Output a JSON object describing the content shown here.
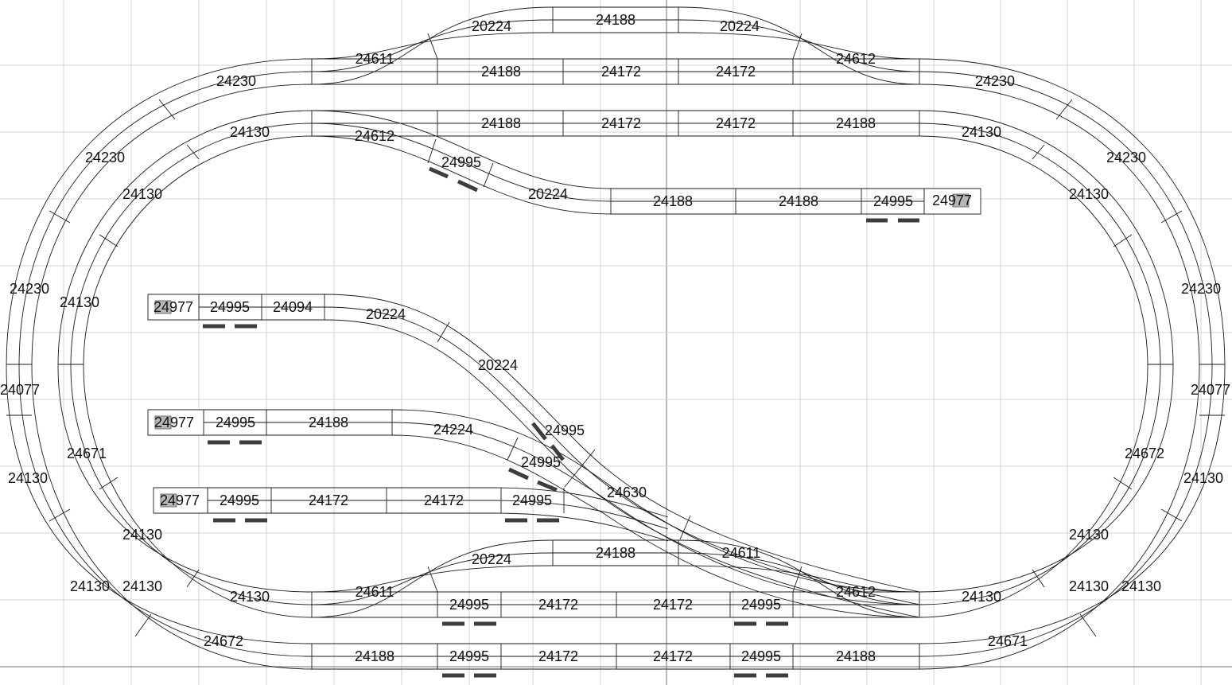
{
  "diagram": {
    "type": "track-plan",
    "labels": [
      "24188",
      "20224",
      "20224",
      "24611",
      "24188",
      "24172",
      "24172",
      "24612",
      "24230",
      "24230",
      "24130",
      "24188",
      "24172",
      "24172",
      "24188",
      "24130",
      "24612",
      "24230",
      "24230",
      "24995",
      "20224",
      "24188",
      "24188",
      "24995",
      "24977",
      "24130",
      "24130",
      "24230",
      "24130",
      "24230",
      "24977",
      "24995",
      "24094",
      "20224",
      "20224",
      "24077",
      "24077",
      "24977",
      "24995",
      "24188",
      "24224",
      "24995",
      "24995",
      "24671",
      "24672",
      "24130",
      "24130",
      "24977",
      "24995",
      "24172",
      "24172",
      "24995",
      "24630",
      "24611",
      "24130",
      "24130",
      "20224",
      "24188",
      "24611",
      "24612",
      "24995",
      "24172",
      "24172",
      "24995",
      "24130",
      "24130",
      "24130",
      "24130",
      "24130",
      "24130",
      "24672",
      "24671",
      "24188",
      "24995",
      "24172",
      "24172",
      "24995",
      "24188"
    ]
  }
}
